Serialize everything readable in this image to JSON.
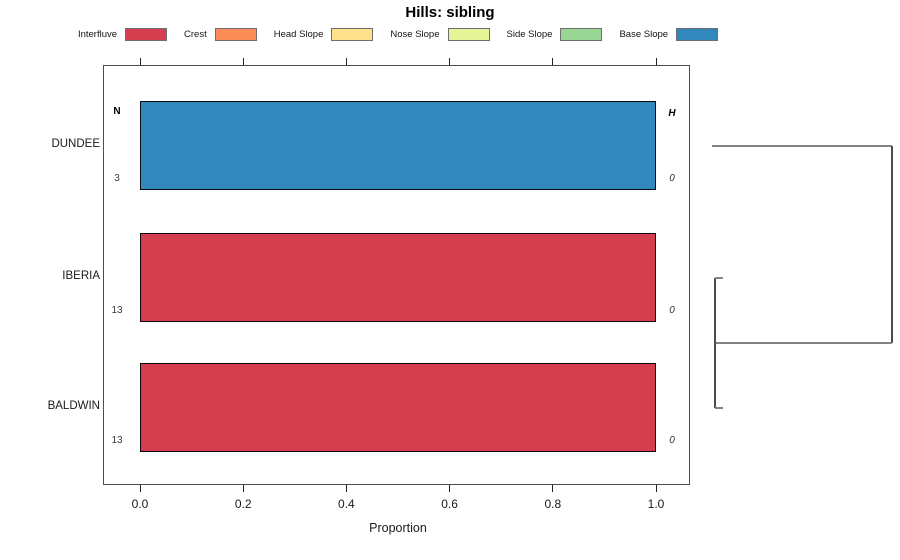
{
  "title": "Hills: sibling",
  "legend": {
    "items": [
      {
        "label": "Interfluve",
        "color": "#D53E4F"
      },
      {
        "label": "Crest",
        "color": "#FC8D59"
      },
      {
        "label": "Head Slope",
        "color": "#FEE08B"
      },
      {
        "label": "Nose Slope",
        "color": "#E6F598"
      },
      {
        "label": "Side Slope",
        "color": "#99D594"
      },
      {
        "label": "Base Slope",
        "color": "#3288BD"
      }
    ]
  },
  "chart_data": {
    "type": "bar",
    "orientation": "horizontal-stacked",
    "title": "Hills: sibling",
    "xlabel": "Proportion",
    "xlim": [
      0,
      1
    ],
    "x_ticks": [
      "0.0",
      "0.2",
      "0.4",
      "0.6",
      "0.8",
      "1.0"
    ],
    "x_tick_values": [
      0,
      0.2,
      0.4,
      0.6,
      0.8,
      1.0
    ],
    "grid": false,
    "legend_position": "top",
    "categories": [
      "DUNDEE",
      "IBERIA",
      "BALDWIN"
    ],
    "series": [
      {
        "name": "Interfluve",
        "color": "#D53E4F",
        "values": [
          0,
          1.0,
          1.0
        ]
      },
      {
        "name": "Crest",
        "color": "#FC8D59",
        "values": [
          0,
          0,
          0
        ]
      },
      {
        "name": "Head Slope",
        "color": "#FEE08B",
        "values": [
          0,
          0,
          0
        ]
      },
      {
        "name": "Nose Slope",
        "color": "#E6F598",
        "values": [
          0,
          0,
          0
        ]
      },
      {
        "name": "Side Slope",
        "color": "#99D594",
        "values": [
          0,
          0,
          0
        ]
      },
      {
        "name": "Base Slope",
        "color": "#3288BD",
        "values": [
          1.0,
          0,
          0
        ]
      }
    ],
    "annotations": {
      "left_header": "N",
      "left_values": [
        "3",
        "13",
        "13"
      ],
      "right_header": "H",
      "right_values": [
        "0",
        "0",
        "0"
      ]
    },
    "dendrogram": {
      "clusters": [
        [
          "IBERIA",
          "BALDWIN"
        ]
      ],
      "root_joins": "DUNDEE"
    }
  },
  "colors": {
    "bar_border": "#0a0a0a",
    "box_border": "#4d4d4d",
    "dendro_line": "#808080",
    "text": "#1a1a1a"
  }
}
